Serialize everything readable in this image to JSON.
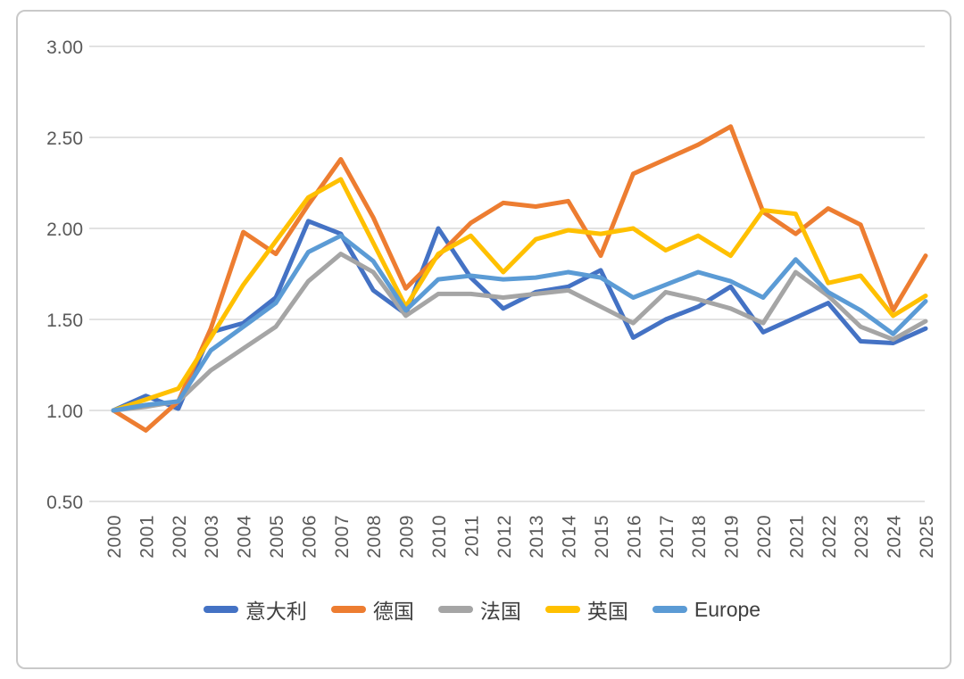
{
  "frame": {
    "border_color": "#c9c9c9",
    "background": "#ffffff"
  },
  "chart_data": {
    "type": "line",
    "title": "",
    "xlabel": "",
    "ylabel": "",
    "x": [
      "2000",
      "2001",
      "2002",
      "2003",
      "2004",
      "2005",
      "2006",
      "2007",
      "2008",
      "2009",
      "2010",
      "2011",
      "2012",
      "2013",
      "2014",
      "2015",
      "2016",
      "2017",
      "2018",
      "2019",
      "2020",
      "2021",
      "2022",
      "2023",
      "2024",
      "2025"
    ],
    "ylim": [
      0.5,
      3.0
    ],
    "yticks": [
      "3.00",
      "2.50",
      "2.00",
      "1.50",
      "1.00",
      "0.50"
    ],
    "grid": true,
    "legend_position": "bottom",
    "gridline_color": "#D9D9D9",
    "axis_label_color": "#595959",
    "series": [
      {
        "id": "italy",
        "name": "意大利",
        "color": "#4472C4",
        "values": [
          1.0,
          1.08,
          1.01,
          1.43,
          1.48,
          1.62,
          2.04,
          1.97,
          1.66,
          1.53,
          2.0,
          1.73,
          1.56,
          1.65,
          1.68,
          1.77,
          1.4,
          1.5,
          1.57,
          1.68,
          1.43,
          1.51,
          1.59,
          1.38,
          1.37,
          1.45
        ]
      },
      {
        "id": "germany",
        "name": "德国",
        "color": "#ED7D31",
        "values": [
          1.0,
          0.89,
          1.05,
          1.45,
          1.98,
          1.86,
          2.13,
          2.38,
          2.06,
          1.67,
          1.85,
          2.03,
          2.14,
          2.12,
          2.15,
          1.85,
          2.3,
          2.38,
          2.46,
          2.56,
          2.09,
          1.97,
          2.11,
          2.02,
          1.55,
          1.85
        ]
      },
      {
        "id": "france",
        "name": "法国",
        "color": "#A5A5A5",
        "values": [
          1.0,
          1.02,
          1.05,
          1.22,
          1.34,
          1.46,
          1.71,
          1.86,
          1.76,
          1.52,
          1.64,
          1.64,
          1.62,
          1.64,
          1.66,
          1.57,
          1.48,
          1.65,
          1.61,
          1.56,
          1.48,
          1.76,
          1.63,
          1.46,
          1.39,
          1.49
        ]
      },
      {
        "id": "uk",
        "name": "英国",
        "color": "#FFC000",
        "values": [
          1.0,
          1.06,
          1.12,
          1.4,
          1.69,
          1.93,
          2.17,
          2.27,
          1.92,
          1.57,
          1.86,
          1.96,
          1.76,
          1.94,
          1.99,
          1.97,
          2.0,
          1.88,
          1.96,
          1.85,
          2.1,
          2.08,
          1.7,
          1.74,
          1.52,
          1.63
        ]
      },
      {
        "id": "europe",
        "name": "Europe",
        "color": "#5B9BD5",
        "values": [
          1.0,
          1.03,
          1.05,
          1.33,
          1.46,
          1.59,
          1.87,
          1.96,
          1.82,
          1.55,
          1.72,
          1.74,
          1.72,
          1.73,
          1.76,
          1.73,
          1.62,
          1.69,
          1.76,
          1.71,
          1.62,
          1.83,
          1.65,
          1.55,
          1.42,
          1.6
        ]
      }
    ]
  }
}
